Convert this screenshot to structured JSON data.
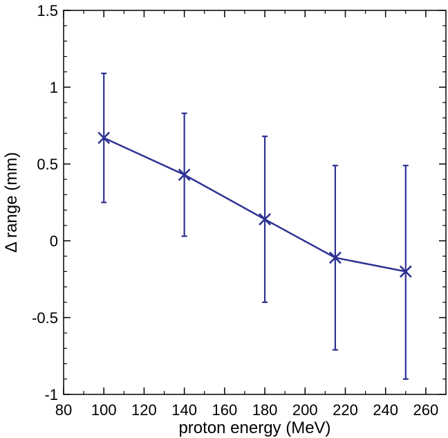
{
  "chart_data": {
    "type": "scatter",
    "title": "",
    "xlabel": "proton energy (MeV)",
    "ylabel": "Δ range (mm)",
    "xlim": [
      80,
      270
    ],
    "ylim": [
      -1,
      1.5
    ],
    "xticks": [
      80,
      100,
      120,
      140,
      160,
      180,
      200,
      220,
      240,
      260
    ],
    "yticks": [
      -1,
      -0.5,
      0,
      0.5,
      1,
      1.5
    ],
    "xtick_labels": [
      "80",
      "100",
      "120",
      "140",
      "160",
      "180",
      "200",
      "220",
      "240",
      "260"
    ],
    "ytick_labels": [
      "-1",
      "-0.5",
      "0",
      "0.5",
      "1",
      "1.5"
    ],
    "grid": false,
    "marker": "x",
    "connected": true,
    "series_color": "#2e3192",
    "series": [
      {
        "x": [
          100,
          140,
          180,
          215,
          250
        ],
        "y": [
          0.67,
          0.43,
          0.14,
          -0.11,
          -0.2
        ],
        "yerr_low": [
          0.25,
          0.03,
          -0.4,
          -0.71,
          -0.9
        ],
        "yerr_high": [
          1.09,
          0.83,
          0.68,
          0.49,
          0.49
        ]
      }
    ]
  }
}
